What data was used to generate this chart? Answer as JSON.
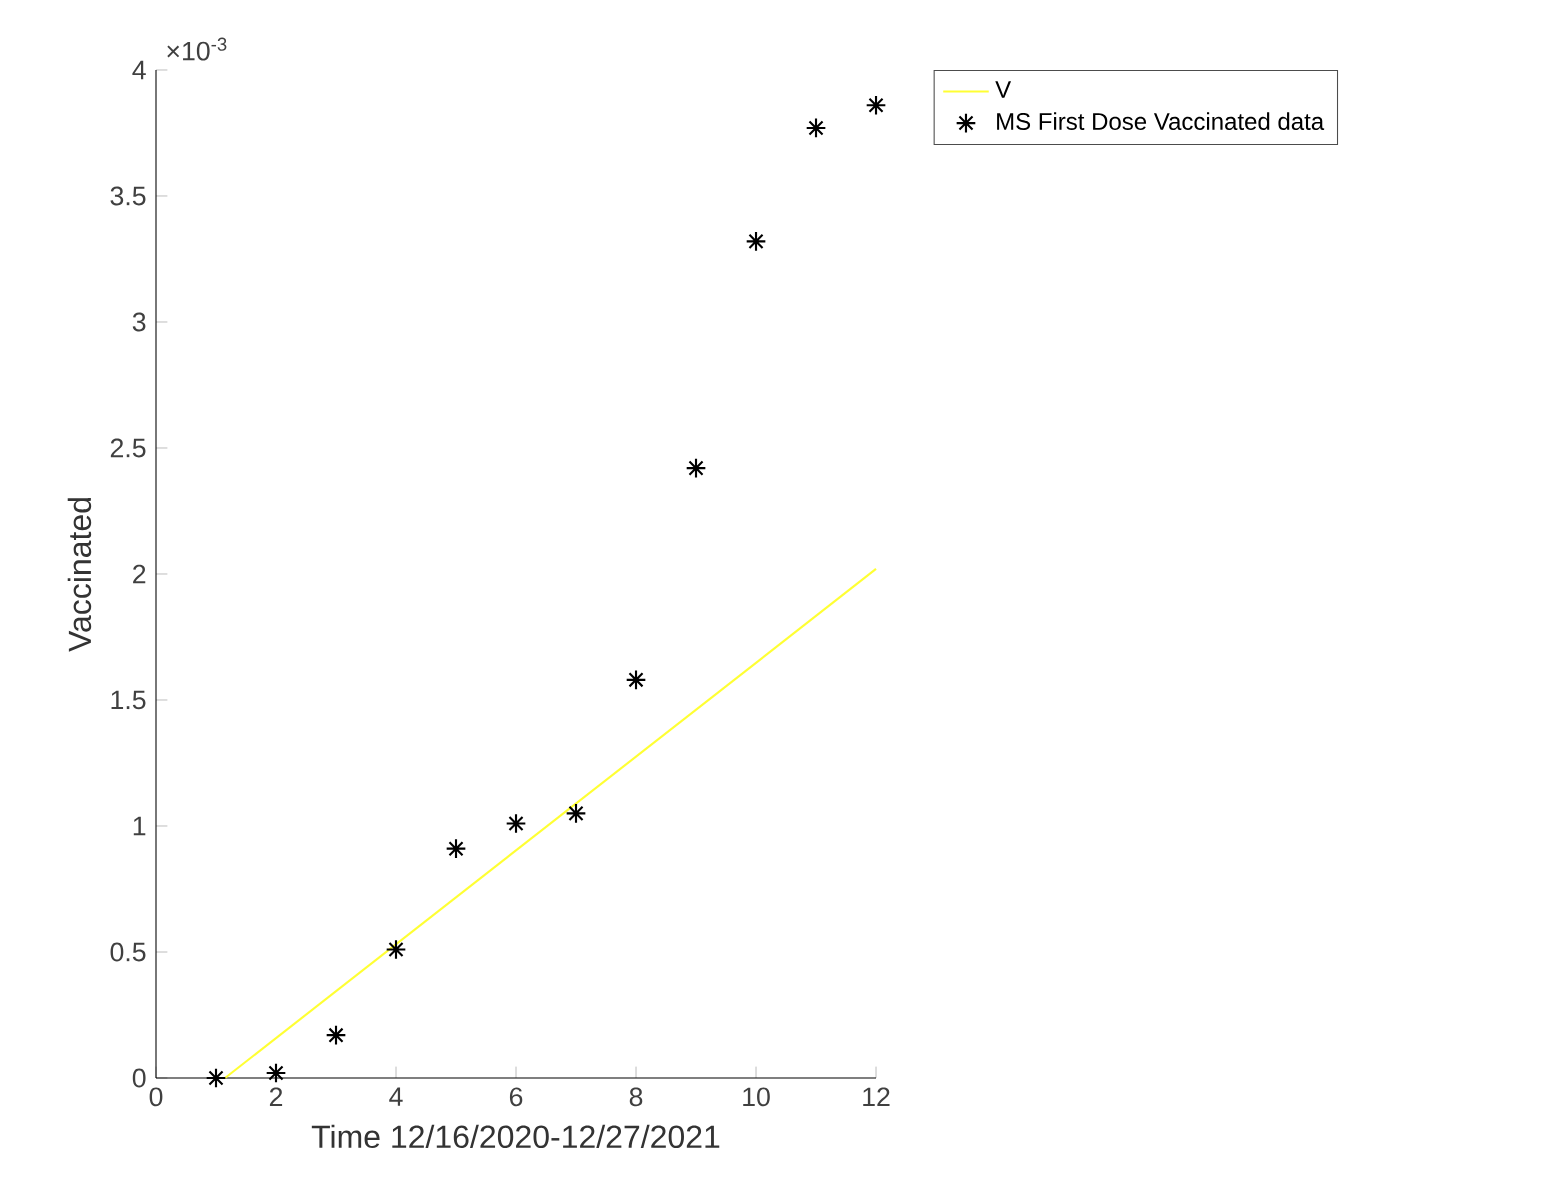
{
  "chart_data": {
    "type": "scatter",
    "xlabel": "Time 12/16/2020-12/27/2021",
    "ylabel": "Vaccinated",
    "xlim": [
      0,
      12
    ],
    "xticks": [
      0,
      2,
      4,
      6,
      8,
      10,
      12
    ],
    "ylim": [
      0,
      4
    ],
    "yticks": [
      0,
      0.5,
      1,
      1.5,
      2,
      2.5,
      3,
      3.5,
      4
    ],
    "annotations": [
      "×10$^{-3}$"
    ],
    "legend": "top right",
    "grid": false,
    "series": [
      {
        "name": "V",
        "type": "line",
        "color": "#ffff33",
        "x": [
          1.15,
          12
        ],
        "values": [
          0,
          2.02
        ],
        "marker": "none",
        "line_style": "solid"
      },
      {
        "name": "MS First Dose Vaccinated data",
        "color": "#000000",
        "marker": "cross",
        "x": [
          1,
          2,
          3,
          4,
          5,
          6,
          7,
          8,
          9,
          10,
          11,
          12
        ],
        "values": [
          0,
          0.02,
          0.17,
          0.51,
          0.91,
          1.01,
          1.05,
          1.58,
          2.42,
          3.32,
          3.77,
          3.86
        ]
      }
    ]
  }
}
